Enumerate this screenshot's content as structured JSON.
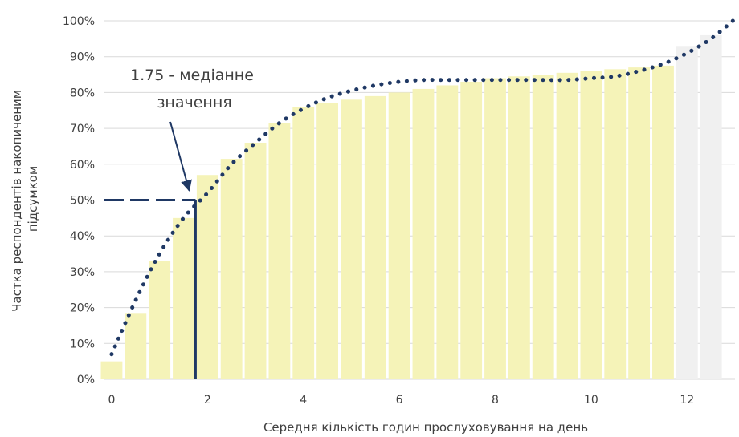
{
  "chart_data": {
    "type": "bar",
    "xlabel": "Середня  кількість годин прослуховування на день",
    "ylabel_lines": [
      "Частка респондентів накопиченим",
      "підсумком"
    ],
    "x_ticks": [
      0,
      2,
      4,
      6,
      8,
      10,
      12
    ],
    "x_tick_labels": [
      "0",
      "2",
      "4",
      "6",
      "8",
      "10",
      "12"
    ],
    "y_ticks": [
      0,
      10,
      20,
      30,
      40,
      50,
      60,
      70,
      80,
      90,
      100
    ],
    "y_tick_labels": [
      "0%",
      "10%",
      "20%",
      "30%",
      "40%",
      "50%",
      "60%",
      "70%",
      "80%",
      "90%",
      "100%"
    ],
    "xlim": [
      -0.15,
      13
    ],
    "ylim": [
      0,
      100
    ],
    "bin_width": 0.5,
    "bars": {
      "name": "cumulative share",
      "color": "#f5f3b8",
      "x": [
        0,
        0.5,
        1,
        1.5,
        2,
        2.5,
        3,
        3.5,
        4,
        4.5,
        5,
        5.5,
        6,
        6.5,
        7,
        7.5,
        8,
        8.5,
        9,
        9.5,
        10,
        10.5,
        11,
        11.5,
        12,
        12.5
      ],
      "values": [
        5,
        18.5,
        33,
        45,
        57,
        61.5,
        66,
        71.5,
        76,
        77,
        78,
        79,
        80,
        81,
        82,
        83,
        84,
        84.5,
        85,
        85.5,
        86,
        86.5,
        87,
        87.5,
        93,
        96
      ]
    },
    "faded_bars_from_index": 24,
    "faded_color": "#f0f0f0",
    "trend": {
      "style": "dotted",
      "color": "#1f3864",
      "x": [
        0,
        0.5,
        1,
        1.5,
        2,
        2.5,
        3,
        3.5,
        4,
        4.5,
        5,
        5.5,
        6,
        6.5,
        7,
        7.5,
        8,
        8.5,
        9,
        9.5,
        10,
        10.5,
        11,
        11.5,
        12,
        12.5,
        13
      ],
      "y": [
        7,
        22,
        35,
        45,
        52,
        60,
        66,
        71.5,
        75.5,
        78.5,
        80.5,
        82,
        83,
        83.5,
        83.5,
        83.5,
        83.5,
        83.5,
        83.5,
        83.5,
        84,
        84.5,
        86,
        88,
        91,
        95,
        100.5
      ]
    },
    "median": {
      "x": 1.75,
      "y": 50,
      "color": "#1f3864"
    },
    "annotation": {
      "lines": [
        "1.75 - медіанне",
        "значення"
      ],
      "arrow_to": [
        1.75,
        50
      ]
    },
    "grid": {
      "horizontal": true,
      "vertical": false,
      "color": "#d9d9d9"
    }
  }
}
